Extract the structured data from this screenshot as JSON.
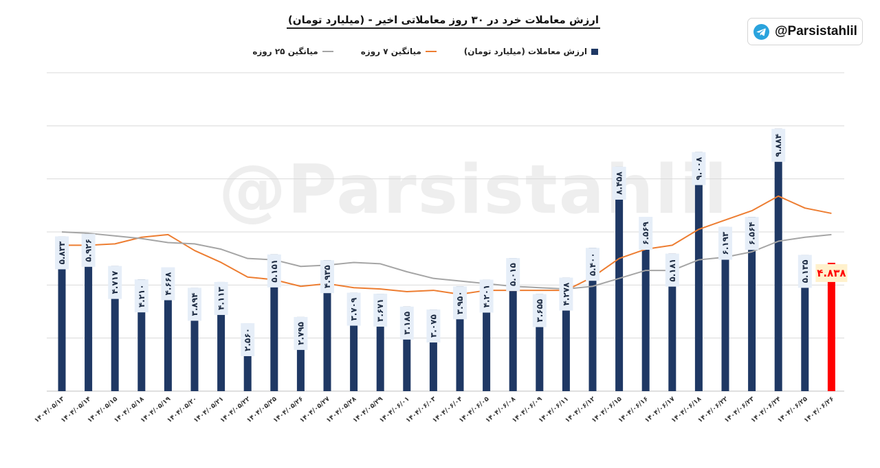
{
  "header": {
    "title": "ارزش معاملات خرد در ۳۰ روز معاملاتی اخیر - (میلیارد تومان)",
    "handle": "@Parsistahlil",
    "handle_icon": "telegram-icon"
  },
  "watermark": "@Parsistahlil",
  "chart_data": {
    "type": "bar",
    "title": "ارزش معاملات خرد در ۳۰ روز معاملاتی اخیر - (میلیارد تومان)",
    "ylim": [
      0,
      12000
    ],
    "grid": true,
    "legend_position": "top",
    "colors": {
      "bar": "#1f3864",
      "highlight": "#ff0000",
      "ma7": "#ed7d31",
      "ma25": "#a5a5a5",
      "grid": "#d9d9d9"
    },
    "categories": [
      "۱۴۰۴/۰۵/۱۳",
      "۱۴۰۴/۰۵/۱۴",
      "۱۴۰۴/۰۵/۱۵",
      "۱۴۰۴/۰۵/۱۸",
      "۱۴۰۴/۰۵/۱۹",
      "۱۴۰۴/۰۵/۲۰",
      "۱۴۰۴/۰۵/۲۱",
      "۱۴۰۴/۰۵/۲۲",
      "۱۴۰۴/۰۵/۲۵",
      "۱۴۰۴/۰۵/۲۶",
      "۱۴۰۴/۰۵/۲۷",
      "۱۴۰۴/۰۵/۲۸",
      "۱۴۰۴/۰۵/۲۹",
      "۱۴۰۴/۰۶/۰۱",
      "۱۴۰۴/۰۶/۰۳",
      "۱۴۰۴/۰۶/۰۴",
      "۱۴۰۴/۰۶/۰۵",
      "۱۴۰۴/۰۶/۰۸",
      "۱۴۰۴/۰۶/۰۹",
      "۱۴۰۴/۰۶/۱۱",
      "۱۴۰۴/۰۶/۱۲",
      "۱۴۰۴/۰۶/۱۵",
      "۱۴۰۴/۰۶/۱۶",
      "۱۴۰۴/۰۶/۱۷",
      "۱۴۰۴/۰۶/۱۸",
      "۱۴۰۴/۰۶/۲۲",
      "۱۴۰۴/۰۶/۲۳",
      "۱۴۰۴/۰۶/۲۴",
      "۱۴۰۴/۰۶/۲۵",
      "۱۴۰۴/۰۶/۲۶"
    ],
    "series": [
      {
        "name": "ارزش معاملات (میلیارد تومان)",
        "type": "bar",
        "values": [
          5833,
          5926,
          4717,
          4210,
          4668,
          3894,
          4113,
          2560,
          5151,
          2795,
          4935,
          3709,
          3671,
          3185,
          3075,
          3950,
          4201,
          5015,
          3655,
          4278,
          5400,
          8458,
          6569,
          5181,
          9008,
          6193,
          6564,
          9884,
          5135,
          4838
        ],
        "labels": [
          "۵.۸۳۳",
          "۵.۹۲۶",
          "۴.۷۱۷",
          "۴.۲۱۰",
          "۴.۶۶۸",
          "۳.۸۹۴",
          "۴.۱۱۳",
          "۲.۵۶۰",
          "۵.۱۵۱",
          "۲.۷۹۵",
          "۴.۹۳۵",
          "۳.۷۰۹",
          "۳.۶۷۱",
          "۳.۱۸۵",
          "۳.۰۷۵",
          "۳.۹۵۰",
          "۴.۲۰۱",
          "۵.۰۱۵",
          "۳.۶۵۵",
          "۴.۲۷۸",
          "۵.۴۰۰",
          "۸.۴۵۸",
          "۶.۵۶۹",
          "۵.۱۸۱",
          "۹.۰۰۸",
          "۶.۱۹۳",
          "۶.۵۶۴",
          "۹.۸۸۴",
          "۵.۱۳۵",
          "۴.۸۳۸"
        ]
      },
      {
        "name": "میانگین ۷ روزه",
        "type": "line",
        "values": [
          5500,
          5500,
          5550,
          5800,
          5900,
          5300,
          4850,
          4300,
          4200,
          3950,
          4050,
          3900,
          3850,
          3750,
          3800,
          3650,
          3800,
          3800,
          3800,
          3800,
          4300,
          5000,
          5350,
          5500,
          6100,
          6450,
          6800,
          7350,
          6900,
          6700
        ]
      },
      {
        "name": "میانگین ۲۵ روزه",
        "type": "line",
        "values": [
          6000,
          5950,
          5850,
          5750,
          5600,
          5550,
          5350,
          5000,
          4950,
          4700,
          4750,
          4850,
          4800,
          4500,
          4250,
          4150,
          4050,
          3950,
          3900,
          3850,
          3950,
          4250,
          4550,
          4550,
          4950,
          5050,
          5250,
          5650,
          5800,
          5900
        ]
      }
    ]
  }
}
